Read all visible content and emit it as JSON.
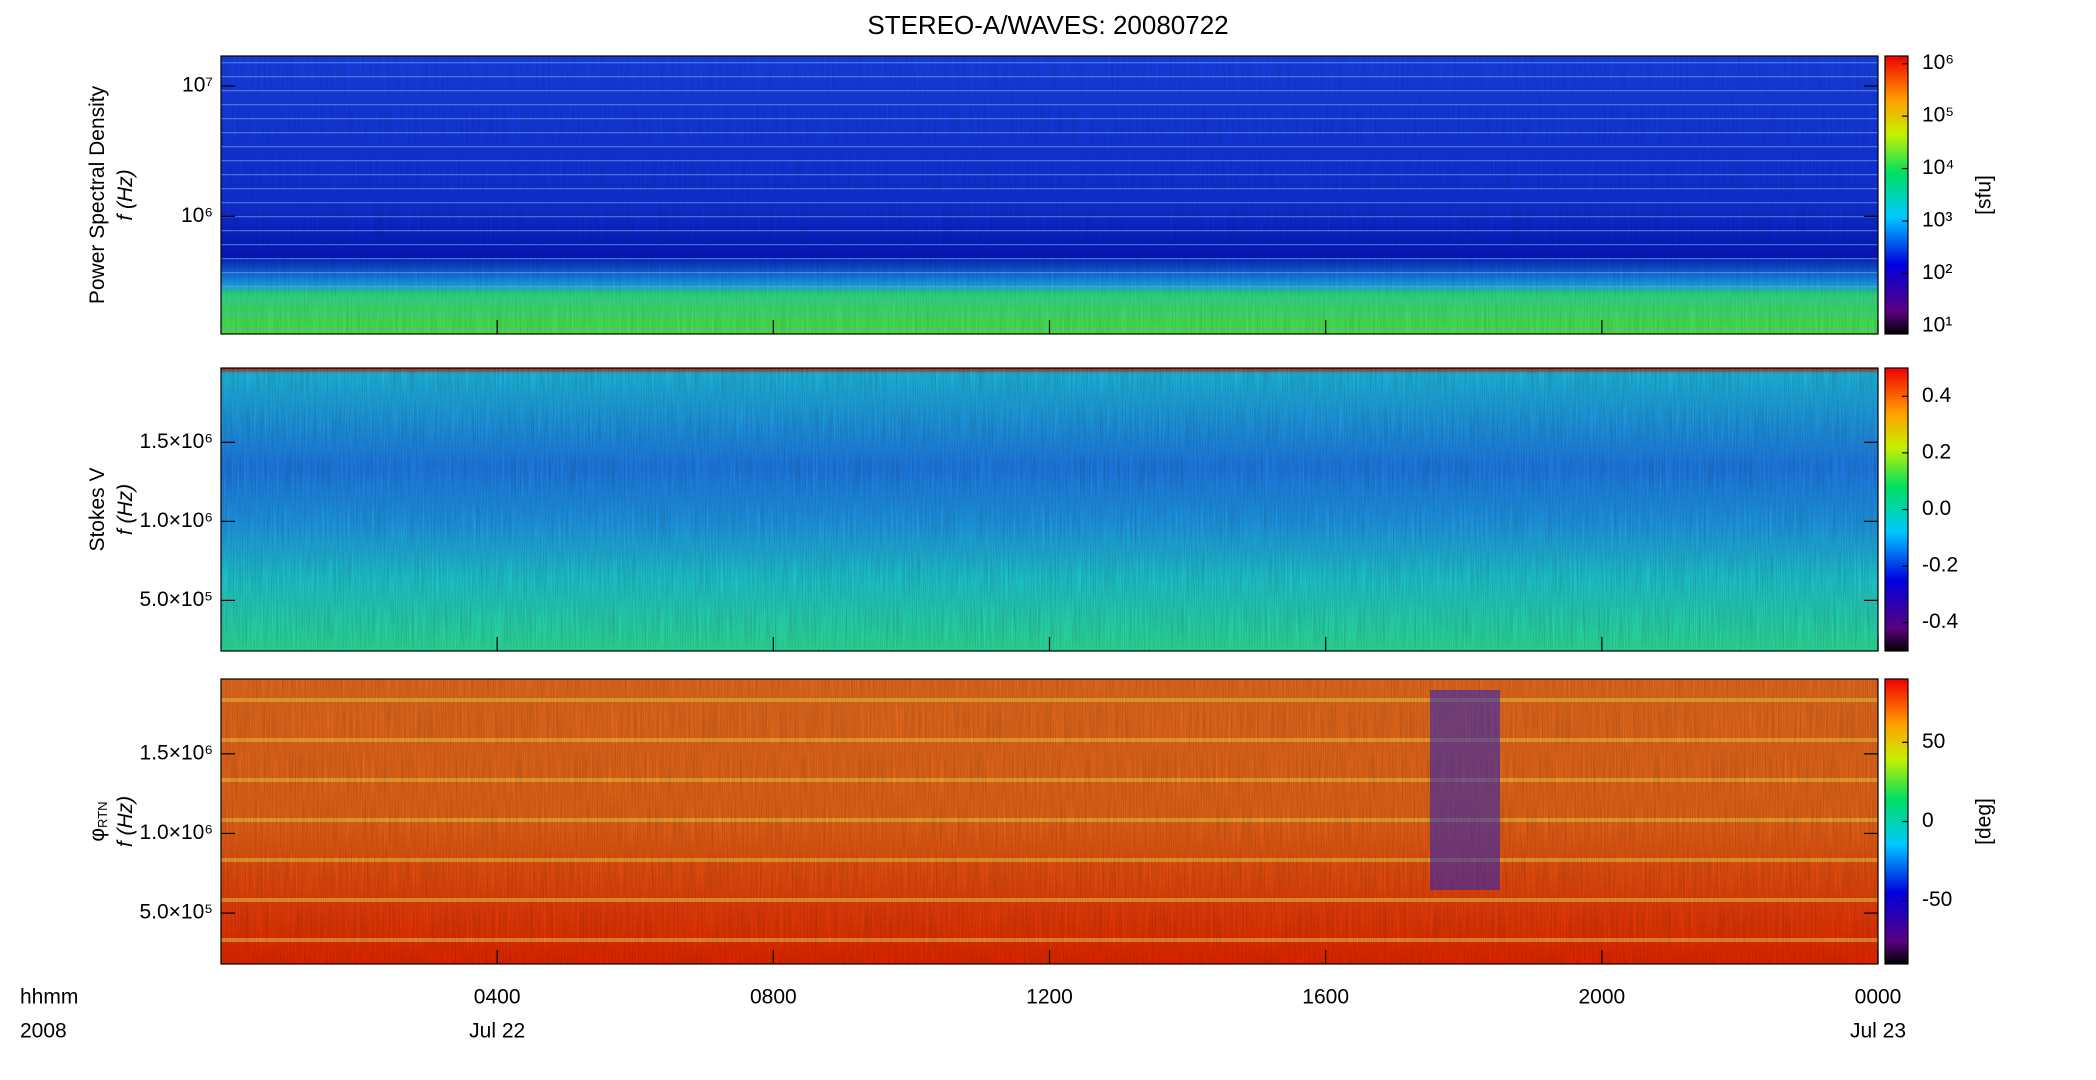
{
  "chart_data": {
    "type": "spectrogram",
    "title": "STEREO-A/WAVES: 20080722",
    "x_axis_labels": [
      "hhmm",
      "2008"
    ],
    "xlim": [
      0,
      24
    ],
    "xticks": [
      {
        "value": 4,
        "label": "0400"
      },
      {
        "value": 8,
        "label": "0800"
      },
      {
        "value": 12,
        "label": "1200"
      },
      {
        "value": 16,
        "label": "1600"
      },
      {
        "value": 20,
        "label": "2000"
      },
      {
        "value": 24,
        "label": "0000"
      }
    ],
    "xtick_dates": [
      {
        "value": 4,
        "label": "Jul 22"
      },
      {
        "value": 24,
        "label": "Jul 23"
      }
    ],
    "panels": [
      {
        "ylabel": [
          "Power Spectral Density",
          "f (Hz)"
        ],
        "yscale": "log",
        "ylim": [
          125000,
          17000000
        ],
        "yticks": [
          {
            "value": 1000000,
            "label": "10⁶"
          },
          {
            "value": 10000000,
            "label": "10⁷"
          }
        ],
        "colorbar": {
          "label": "[sfu]",
          "scale": "log",
          "lim": [
            7,
            1400000
          ],
          "ticks": [
            {
              "value": 10,
              "label": "10¹"
            },
            {
              "value": 100,
              "label": "10²"
            },
            {
              "value": 1000,
              "label": "10³"
            },
            {
              "value": 10000,
              "label": "10⁴"
            },
            {
              "value": 100000,
              "label": "10⁵"
            },
            {
              "value": 1000000,
              "label": "10⁶"
            }
          ]
        }
      },
      {
        "ylabel": [
          "Stokes V",
          "f (Hz)"
        ],
        "yscale": "linear",
        "ylim": [
          180000,
          1970000
        ],
        "yticks": [
          {
            "value": 500000,
            "label": "5.0×10⁵"
          },
          {
            "value": 1000000,
            "label": "1.0×10⁶"
          },
          {
            "value": 1500000,
            "label": "1.5×10⁶"
          }
        ],
        "colorbar": {
          "scale": "linear",
          "lim": [
            -0.5,
            0.5
          ],
          "ticks": [
            -0.4,
            -0.2,
            {
              "value": 0,
              "label": "0.0"
            },
            0.2,
            0.4
          ]
        }
      },
      {
        "ylabel": [
          "φ",
          "f (Hz)"
        ],
        "ylabel_sub": "RTN",
        "yscale": "linear",
        "ylim": [
          180000,
          1970000
        ],
        "yticks": [
          {
            "value": 500000,
            "label": "5.0×10⁵"
          },
          {
            "value": 1000000,
            "label": "1.0×10⁶"
          },
          {
            "value": 1500000,
            "label": "1.5×10⁶"
          }
        ],
        "colorbar": {
          "label": "[deg]",
          "scale": "linear",
          "lim": [
            -90,
            90
          ],
          "ticks": [
            -50,
            0,
            50
          ]
        }
      }
    ]
  }
}
